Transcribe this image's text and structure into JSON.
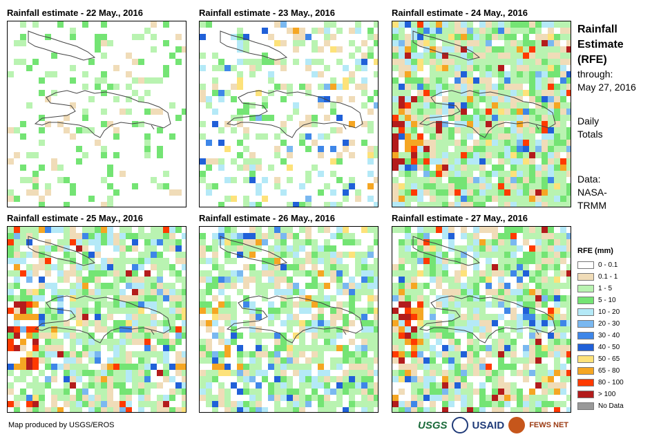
{
  "panels": [
    {
      "title": "Rainfall estimate - 22 May., 2016"
    },
    {
      "title": "Rainfall estimate - 23 May., 2016"
    },
    {
      "title": "Rainfall estimate - 24 May., 2016"
    },
    {
      "title": "Rainfall estimate - 25 May., 2016"
    },
    {
      "title": "Rainfall estimate - 26 May., 2016"
    },
    {
      "title": "Rainfall estimate - 27 May., 2016"
    }
  ],
  "side": {
    "title_line1": "Rainfall",
    "title_line2": "Estimate",
    "title_line3": "(RFE)",
    "through_label": "through:",
    "through_date": "May 27, 2016",
    "daily_line1": "Daily",
    "daily_line2": "Totals",
    "data_line1": "Data:",
    "data_line2": "NASA-",
    "data_line3": "TRMM"
  },
  "legend": {
    "title": "RFE (mm)",
    "items": [
      {
        "label": "0 - 0.1",
        "color": "#ffffff"
      },
      {
        "label": "0.1 - 1",
        "color": "#f0dcb8"
      },
      {
        "label": "1 - 5",
        "color": "#b9f3b1"
      },
      {
        "label": "5 - 10",
        "color": "#74e474"
      },
      {
        "label": "10 - 20",
        "color": "#b4e9f7"
      },
      {
        "label": "20 - 30",
        "color": "#7ab8f0"
      },
      {
        "label": "30 - 40",
        "color": "#3e86e8"
      },
      {
        "label": "40 - 50",
        "color": "#2060d8"
      },
      {
        "label": "50 - 65",
        "color": "#fde27a"
      },
      {
        "label": "65 - 80",
        "color": "#f5a623"
      },
      {
        "label": "80 - 100",
        "color": "#ff3a00"
      },
      {
        "label": "> 100",
        "color": "#b31c1c"
      },
      {
        "label": "No Data",
        "color": "#999999"
      }
    ]
  },
  "footer": {
    "credit": "Map produced by USGS/EROS"
  },
  "logos": {
    "usgs": "USGS",
    "usaid": "USAID",
    "fews": "FEWS NET"
  }
}
